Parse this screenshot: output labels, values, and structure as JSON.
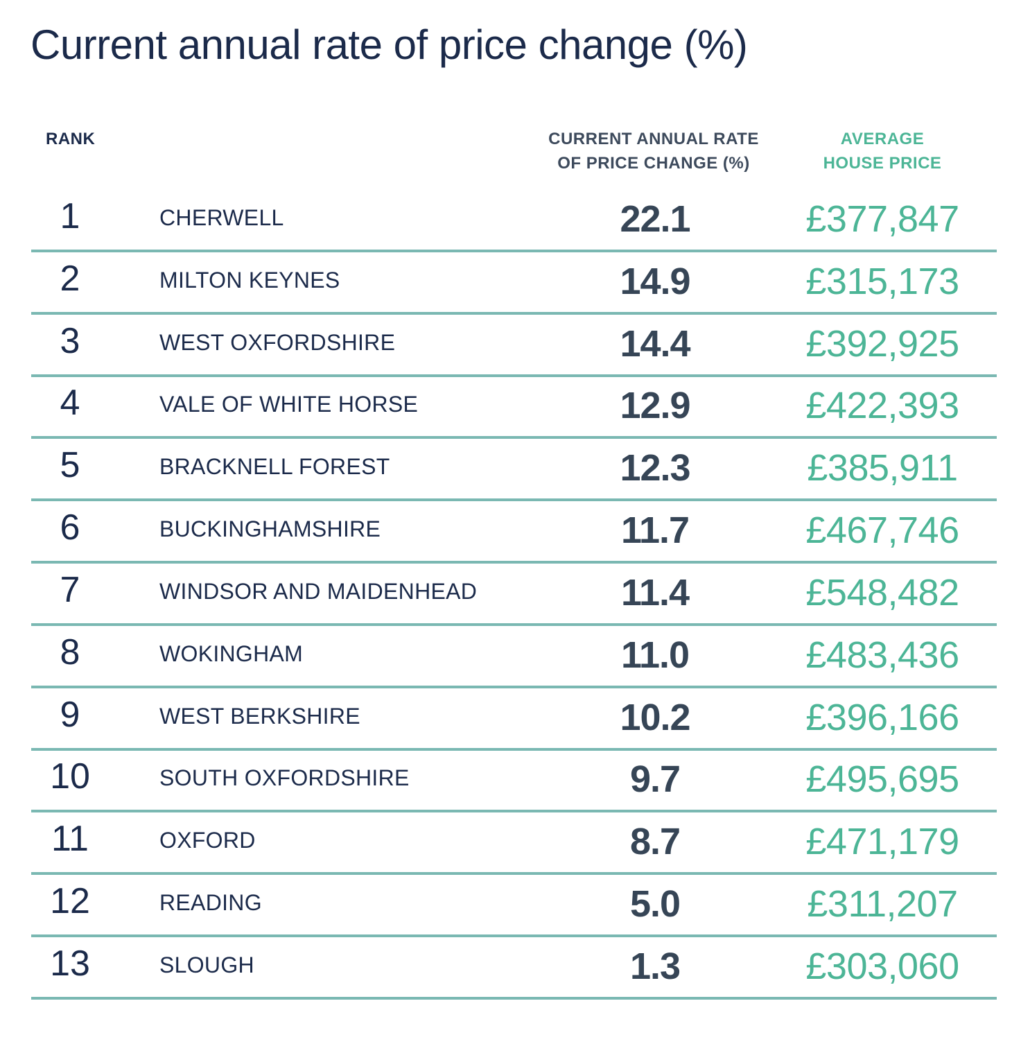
{
  "title": "Current annual rate of price change (%)",
  "headers": {
    "rank": "RANK",
    "rate_line1": "CURRENT ANNUAL RATE",
    "rate_line2": "OF PRICE CHANGE (%)",
    "price_line1": "AVERAGE",
    "price_line2": "HOUSE PRICE"
  },
  "colors": {
    "navy": "#1b2a4a",
    "rate": "#364556",
    "green": "#4cb596",
    "rule": "#7ab8b2"
  },
  "chart_data": {
    "type": "table",
    "title": "Current annual rate of price change (%)",
    "columns": [
      "RANK",
      "",
      "CURRENT ANNUAL RATE OF PRICE CHANGE (%)",
      "AVERAGE HOUSE PRICE"
    ],
    "rows": [
      {
        "rank": "1",
        "area": "CHERWELL",
        "rate": "22.1",
        "price": "£377,847"
      },
      {
        "rank": "2",
        "area": "MILTON KEYNES",
        "rate": "14.9",
        "price": "£315,173"
      },
      {
        "rank": "3",
        "area": "WEST OXFORDSHIRE",
        "rate": "14.4",
        "price": "£392,925"
      },
      {
        "rank": "4",
        "area": "VALE OF WHITE HORSE",
        "rate": "12.9",
        "price": "£422,393"
      },
      {
        "rank": "5",
        "area": "BRACKNELL FOREST",
        "rate": "12.3",
        "price": "£385,911"
      },
      {
        "rank": "6",
        "area": "BUCKINGHAMSHIRE",
        "rate": "11.7",
        "price": "£467,746"
      },
      {
        "rank": "7",
        "area": "WINDSOR AND MAIDENHEAD",
        "rate": "11.4",
        "price": "£548,482"
      },
      {
        "rank": "8",
        "area": "WOKINGHAM",
        "rate": "11.0",
        "price": "£483,436"
      },
      {
        "rank": "9",
        "area": "WEST BERKSHIRE",
        "rate": "10.2",
        "price": "£396,166"
      },
      {
        "rank": "10",
        "area": "SOUTH OXFORDSHIRE",
        "rate": "9.7",
        "price": "£495,695"
      },
      {
        "rank": "11",
        "area": "OXFORD",
        "rate": "8.7",
        "price": "£471,179"
      },
      {
        "rank": "12",
        "area": "READING",
        "rate": "5.0",
        "price": "£311,207"
      },
      {
        "rank": "13",
        "area": "SLOUGH",
        "rate": "1.3",
        "price": "£303,060"
      }
    ]
  }
}
